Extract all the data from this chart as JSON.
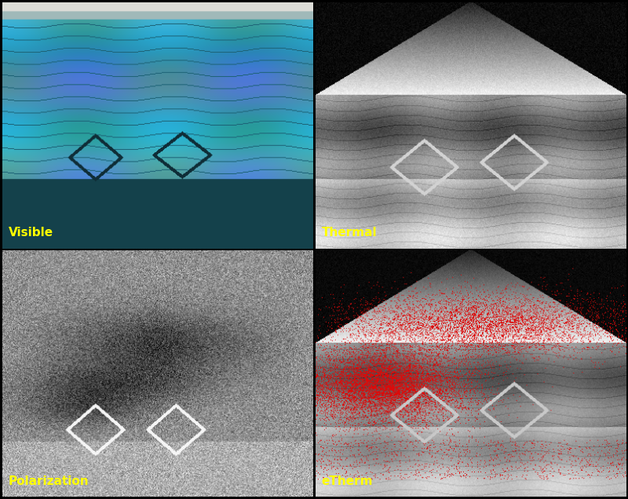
{
  "figure_width": 8.0,
  "figure_height": 6.36,
  "dpi": 100,
  "background_color": "#000000",
  "labels": [
    "Visible",
    "Thermal",
    "Polarization",
    "eTherm"
  ],
  "label_color": "#ffff00",
  "label_fontsize": 11,
  "grid_rows": 2,
  "grid_cols": 2
}
